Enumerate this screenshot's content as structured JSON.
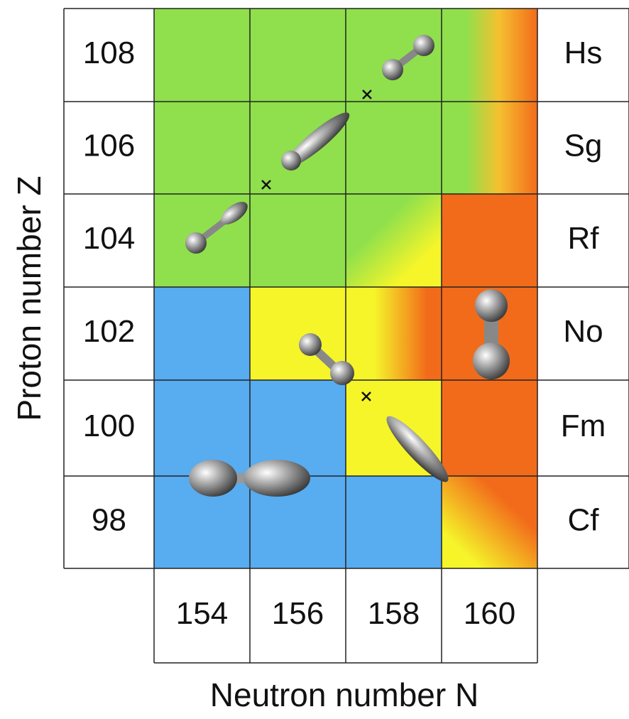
{
  "y_axis_title": "Proton number Z",
  "x_axis_title": "Neutron number N",
  "rows": [
    {
      "z": 108,
      "element": "Hs"
    },
    {
      "z": 106,
      "element": "Sg"
    },
    {
      "z": 104,
      "element": "Rf"
    },
    {
      "z": 102,
      "element": "No"
    },
    {
      "z": 100,
      "element": "Fm"
    },
    {
      "z": 98,
      "element": "Cf"
    }
  ],
  "columns": [
    154,
    156,
    158,
    160
  ]
}
